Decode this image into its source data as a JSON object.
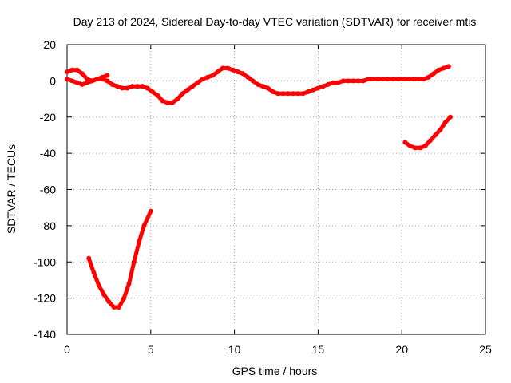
{
  "chart_data": {
    "type": "line",
    "title": "Day 213 of 2024, Sidereal Day-to-day VTEC variation (SDTVAR) for receiver mtis",
    "xlabel": "GPS time / hours",
    "ylabel": "SDTVAR / TECUs",
    "xlim": [
      0,
      25
    ],
    "ylim": [
      -140,
      20
    ],
    "x_ticks": [
      0,
      5,
      10,
      15,
      20,
      25
    ],
    "y_ticks": [
      -140,
      -120,
      -100,
      -80,
      -60,
      -40,
      -20,
      0,
      20
    ],
    "grid": true,
    "legend": "none",
    "series_color": "#ff0000",
    "series": [
      {
        "x": [
          0.0,
          0.3,
          0.6,
          0.9,
          1.2,
          1.5,
          1.8,
          2.1,
          2.4,
          2.7,
          3.0,
          3.3,
          3.6,
          3.9,
          4.2,
          4.5,
          4.8,
          5.1,
          5.4,
          5.7,
          6.0,
          6.3,
          6.6,
          6.9,
          7.2,
          7.5,
          7.8,
          8.1,
          8.4,
          8.7,
          9.0,
          9.3,
          9.6,
          9.9,
          10.2,
          10.5,
          10.8,
          11.1,
          11.4,
          11.7,
          12.0,
          12.3,
          12.6,
          12.9,
          13.2,
          13.5,
          13.8,
          14.1,
          14.4,
          14.7,
          15.0,
          15.3,
          15.6,
          15.9,
          16.2,
          16.5,
          16.8,
          17.1,
          17.4,
          17.7,
          18.0,
          18.3,
          18.6,
          18.9,
          19.2,
          19.5,
          19.8,
          20.1,
          20.4,
          20.7,
          21.0,
          21.3,
          21.6,
          21.9,
          22.2,
          22.5,
          22.8
        ],
        "y": [
          1,
          0,
          -1,
          -2,
          -1,
          0,
          1,
          1,
          0,
          -2,
          -3,
          -4,
          -4,
          -3,
          -3,
          -3,
          -4,
          -6,
          -8,
          -11,
          -12,
          -12,
          -10,
          -7,
          -5,
          -3,
          -1,
          1,
          2,
          3,
          5,
          7,
          7,
          6,
          5,
          4,
          2,
          0,
          -2,
          -3,
          -4,
          -6,
          -7,
          -7,
          -7,
          -7,
          -7,
          -7,
          -6,
          -5,
          -4,
          -3,
          -2,
          -1,
          -1,
          0,
          0,
          0,
          0,
          0,
          1,
          1,
          1,
          1,
          1,
          1,
          1,
          1,
          1,
          1,
          1,
          1,
          2,
          4,
          6,
          7,
          8
        ]
      },
      {
        "x": [
          0.0,
          0.3,
          0.6,
          0.9,
          1.2,
          1.5,
          1.8,
          2.1,
          2.4
        ],
        "y": [
          5,
          6,
          6,
          4,
          1,
          0,
          1,
          2,
          3
        ]
      },
      {
        "x": [
          1.3,
          1.6,
          1.9,
          2.2,
          2.5,
          2.8,
          3.1,
          3.4,
          3.7,
          4.0,
          4.3,
          4.6,
          5.0
        ],
        "y": [
          -98,
          -106,
          -113,
          -118,
          -122,
          -125,
          -125,
          -120,
          -112,
          -100,
          -89,
          -80,
          -72
        ]
      },
      {
        "x": [
          20.2,
          20.5,
          20.8,
          21.1,
          21.4,
          21.7,
          22.0,
          22.3,
          22.6,
          22.9
        ],
        "y": [
          -34,
          -36,
          -37,
          -37,
          -36,
          -33,
          -30,
          -27,
          -23,
          -20
        ]
      }
    ]
  }
}
